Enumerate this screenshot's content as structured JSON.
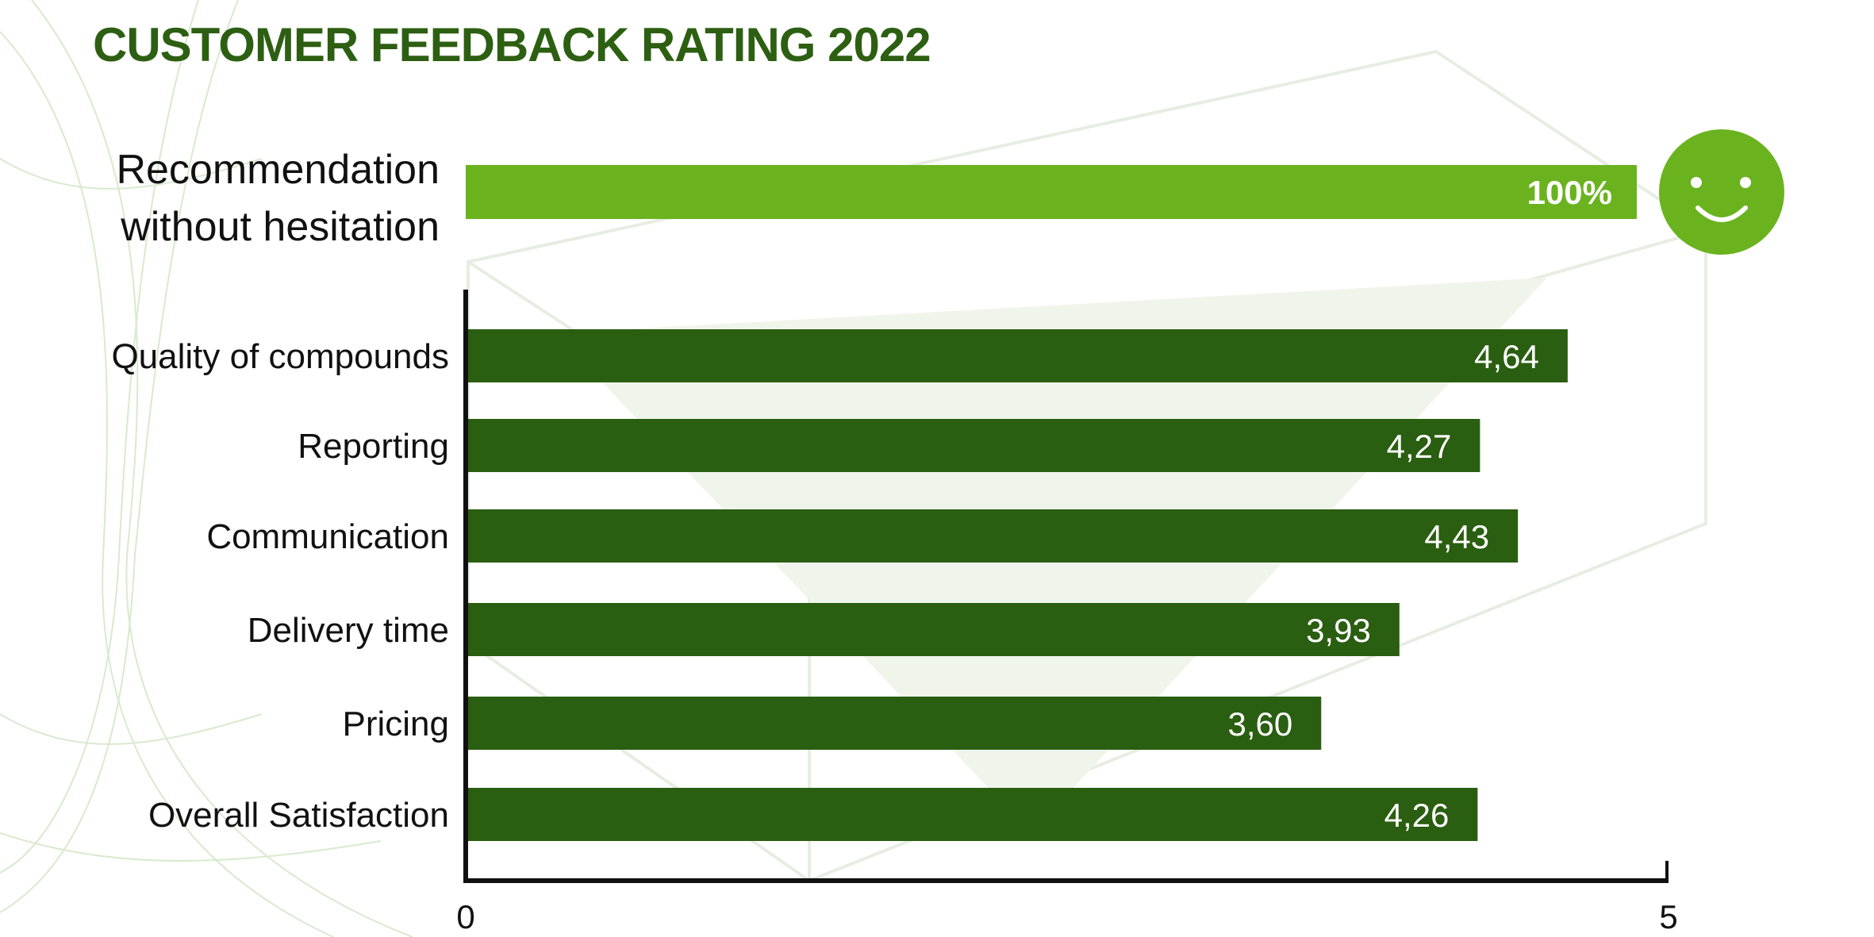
{
  "chart_data": {
    "type": "bar",
    "orientation": "horizontal",
    "title": "CUSTOMER FEEDBACK RATING 2022",
    "highlight": {
      "label": "Recommendation without hesitation",
      "value": 100,
      "value_label": "100%",
      "color": "#6ab31f",
      "icon": "smiley-face-icon"
    },
    "categories": [
      "Quality of compounds",
      "Reporting",
      "Communication",
      "Delivery time",
      "Pricing",
      "Overall Satisfaction"
    ],
    "values": [
      4.64,
      4.27,
      4.43,
      3.93,
      3.6,
      4.26
    ],
    "value_labels": [
      "4,64",
      "4,27",
      "4,43",
      "3,93",
      "3,60",
      "4,26"
    ],
    "bar_color": "#2a5e10",
    "xlim": [
      0,
      5
    ],
    "x_ticks": [
      "0",
      "5"
    ],
    "grid": false,
    "xlabel": "",
    "ylabel": ""
  }
}
